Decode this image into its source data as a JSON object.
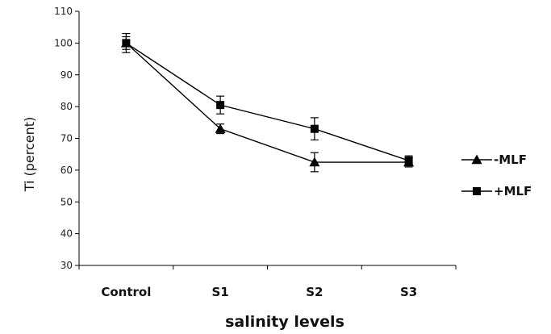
{
  "chart_data": {
    "type": "line",
    "title": "",
    "xlabel": "salinity levels",
    "ylabel": "Ti (percent)",
    "categories": [
      "Control",
      "S1",
      "S2",
      "S3"
    ],
    "ylim": [
      30,
      110
    ],
    "yticks": [
      30,
      40,
      50,
      60,
      70,
      80,
      90,
      100,
      110
    ],
    "grid": false,
    "legend_position": "right",
    "series": [
      {
        "name": "-MLF",
        "marker": "triangle",
        "color": "#000000",
        "values": [
          100,
          73,
          62.5,
          62.5
        ],
        "errors": [
          2,
          1.5,
          3,
          1.5
        ]
      },
      {
        "name": "+MLF",
        "marker": "square",
        "color": "#000000",
        "values": [
          100,
          80.5,
          73,
          63
        ],
        "errors": [
          3,
          2.8,
          3.5,
          1.5
        ]
      }
    ]
  }
}
